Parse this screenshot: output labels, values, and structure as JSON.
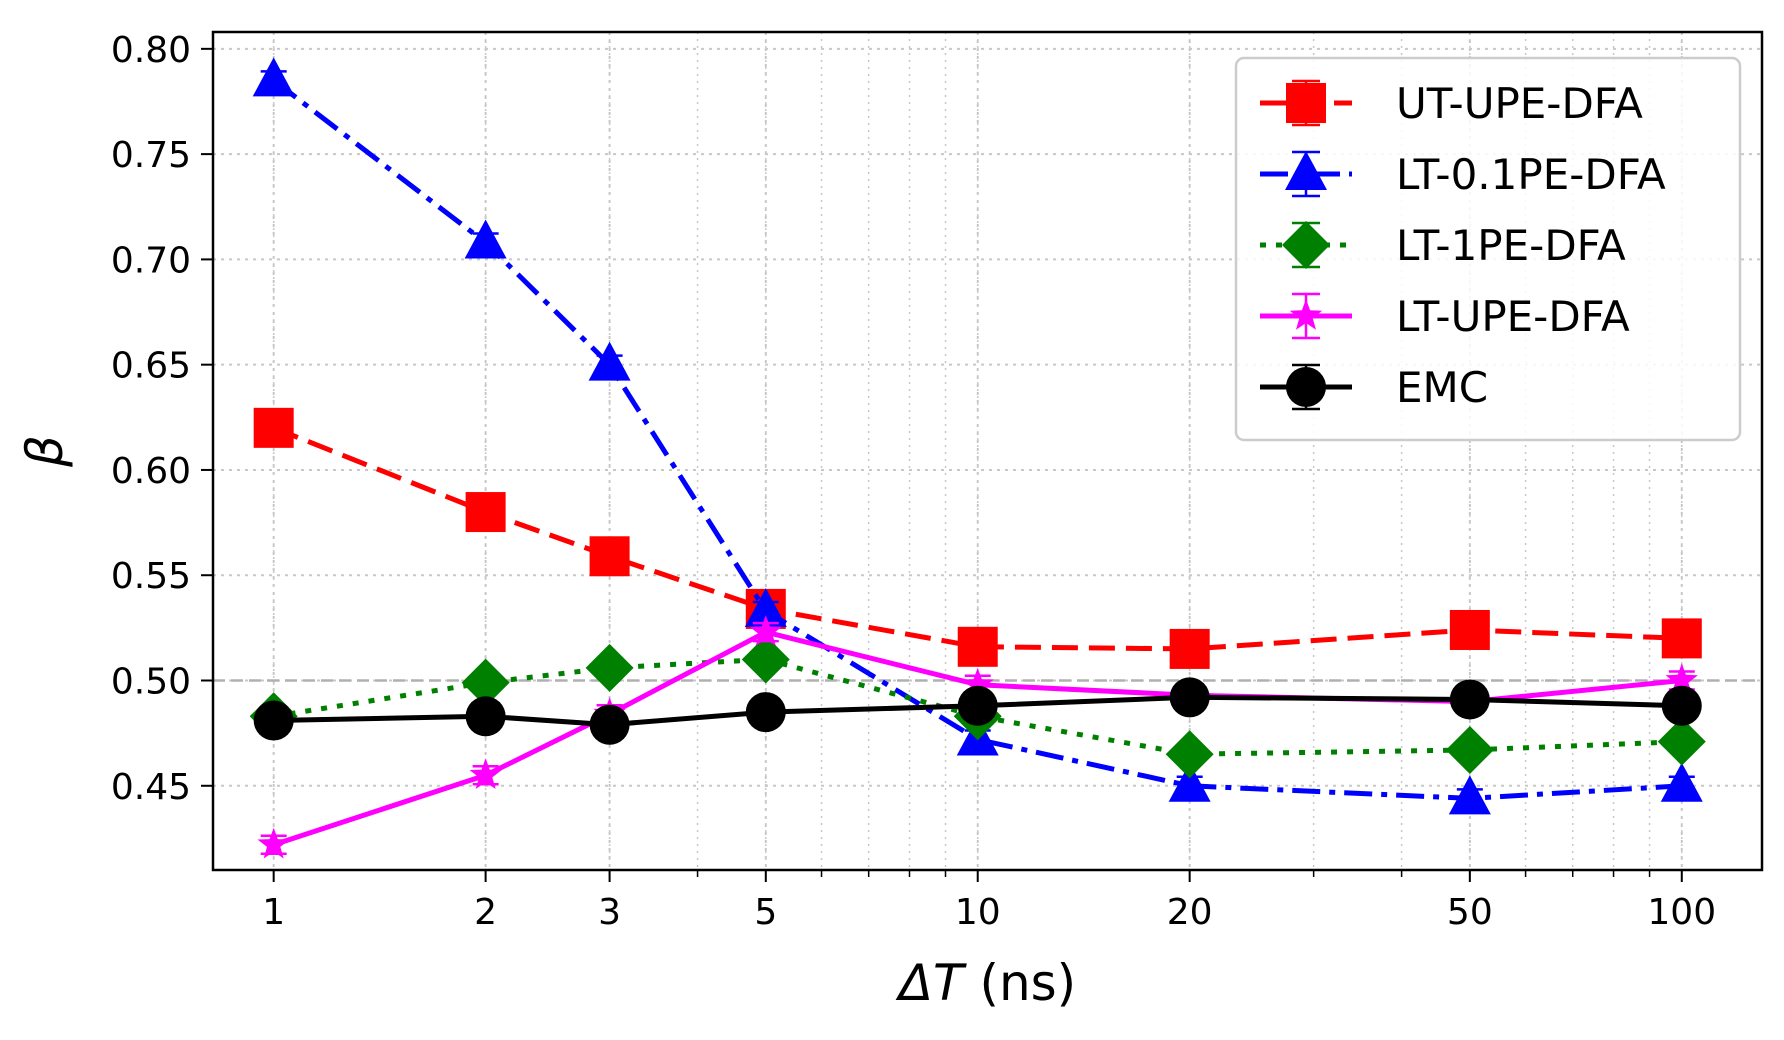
{
  "chart_data": {
    "type": "line",
    "xscale": "log",
    "x": [
      1,
      2,
      3,
      5,
      10,
      20,
      50,
      100
    ],
    "xticks": [
      "1",
      "2",
      "3",
      "5",
      "10",
      "20",
      "50",
      "100"
    ],
    "yticks": [
      "0.45",
      "0.50",
      "0.55",
      "0.60",
      "0.65",
      "0.70",
      "0.75",
      "0.80"
    ],
    "xlabel_prefix": "ΔT",
    "xlabel_suffix": " (ns)",
    "ylabel": "β",
    "xlim": [
      0.82,
      130
    ],
    "ylim": [
      0.41,
      0.808
    ],
    "reference_line": 0.5,
    "grid": true,
    "legend_position": "top-right",
    "series": [
      {
        "name": "UT-UPE-DFA",
        "color": "#ff0000",
        "marker": "square",
        "linestyle": "dashed",
        "values": [
          0.62,
          0.58,
          0.559,
          0.534,
          0.516,
          0.515,
          0.524,
          0.52
        ]
      },
      {
        "name": "LT-0.1PE-DFA",
        "color": "#0000ff",
        "marker": "triangle",
        "linestyle": "dashdot",
        "values": [
          0.785,
          0.708,
          0.65,
          0.533,
          0.472,
          0.45,
          0.444,
          0.45
        ]
      },
      {
        "name": "LT-1PE-DFA",
        "color": "#008000",
        "marker": "diamond",
        "linestyle": "dotted",
        "values": [
          0.483,
          0.499,
          0.506,
          0.51,
          0.483,
          0.465,
          0.467,
          0.471
        ]
      },
      {
        "name": "LT-UPE-DFA",
        "color": "#ff00ff",
        "marker": "star",
        "linestyle": "solid",
        "values": [
          0.422,
          0.455,
          0.484,
          0.523,
          0.498,
          0.493,
          0.49,
          0.5
        ]
      },
      {
        "name": "EMC",
        "color": "#000000",
        "marker": "circle",
        "linestyle": "solid",
        "values": [
          0.481,
          0.483,
          0.479,
          0.485,
          0.488,
          0.492,
          0.491,
          0.488
        ]
      }
    ]
  }
}
